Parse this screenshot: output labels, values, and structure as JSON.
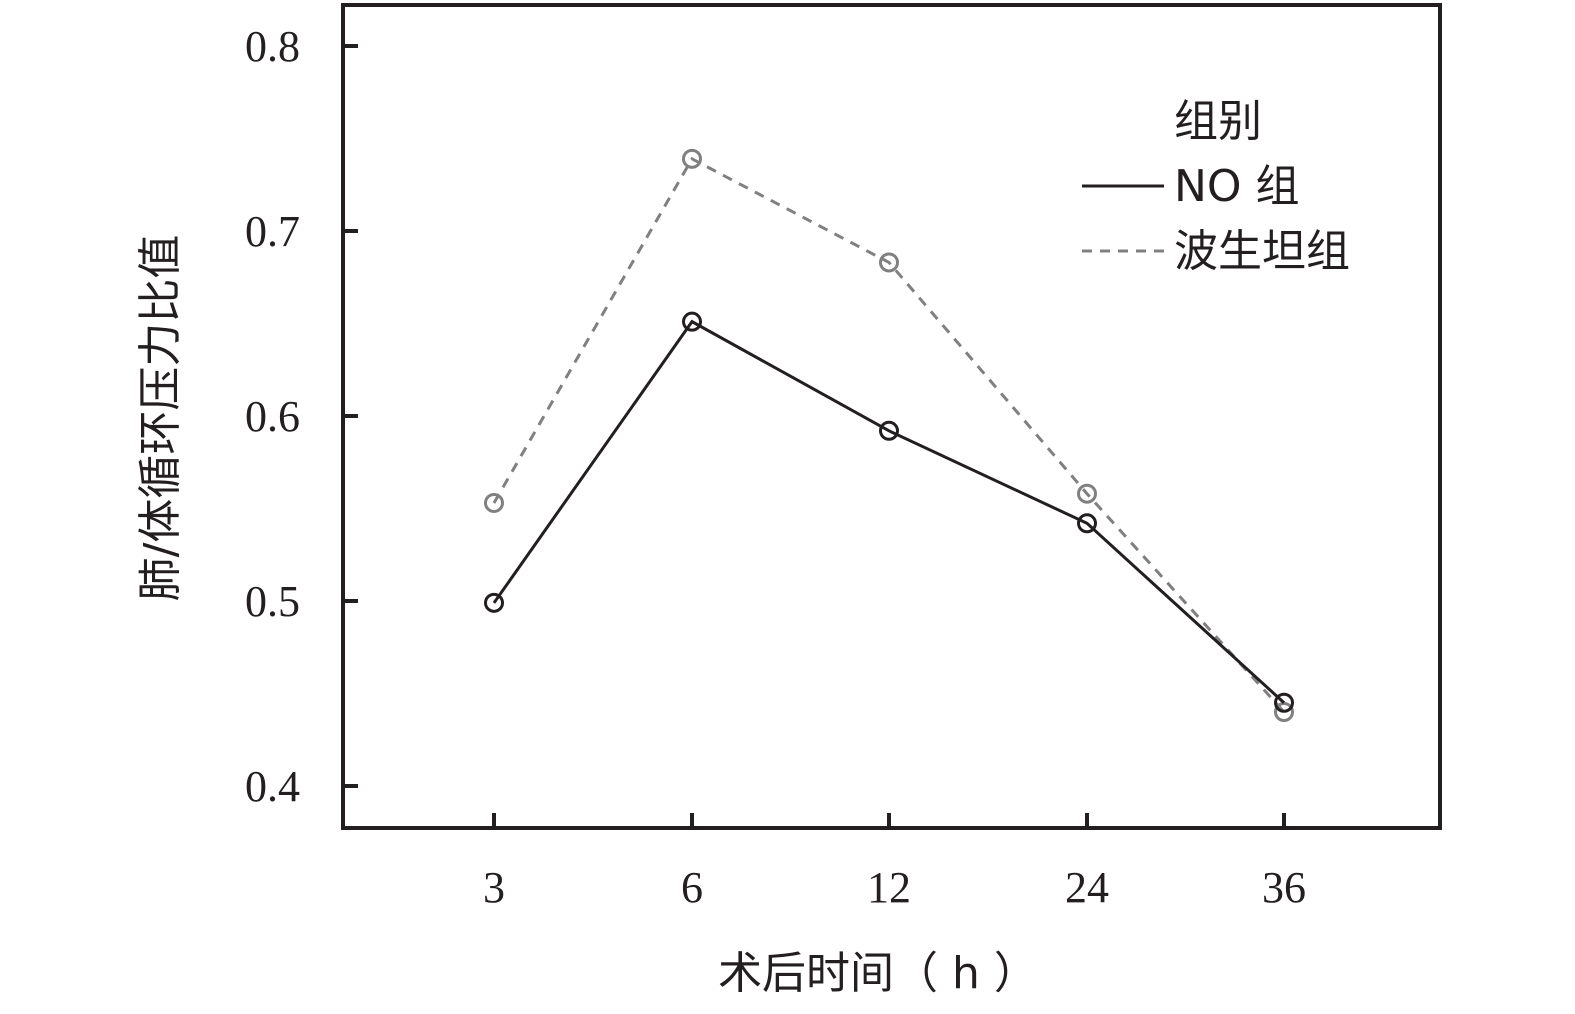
{
  "chart_data": {
    "type": "line",
    "categories": [
      "3",
      "6",
      "12",
      "24",
      "36"
    ],
    "xlabel": "术后时间（ h ）",
    "ylabel": "肺/体循环压力比值",
    "ylim": [
      0.4,
      0.8
    ],
    "yticks": [
      "0.4",
      "0.5",
      "0.6",
      "0.7",
      "0.8"
    ],
    "grid": false,
    "legend": {
      "title": "组别",
      "position": "top-right"
    },
    "series": [
      {
        "name": "NO 组",
        "values": [
          0.499,
          0.651,
          0.592,
          0.542,
          0.445
        ],
        "color": "#231f20",
        "line_style": "solid",
        "marker": "open-circle"
      },
      {
        "name": "波生坦组",
        "values": [
          0.553,
          0.739,
          0.683,
          0.558,
          0.44
        ],
        "color": "#808080",
        "line_style": "dashed",
        "marker": "open-circle"
      }
    ]
  }
}
